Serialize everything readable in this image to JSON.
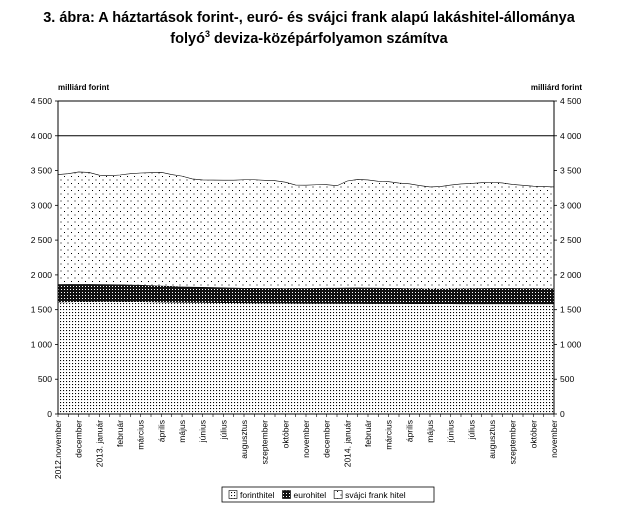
{
  "chart_data": {
    "type": "area",
    "stacked": true,
    "title_line1": "3. ábra: A háztartások forint-, euró- és svájci frank alapú lakáshitel-állománya",
    "title_line2_main": "folyó",
    "title_line2_sup": "3",
    "title_line2_rest": " deviza-középárfolyamon számítva",
    "ylabel_left": "milliárd forint",
    "ylabel_right": "milliárd forint",
    "ylim": [
      0,
      4500
    ],
    "yticks": [
      0,
      500,
      1000,
      1500,
      2000,
      2500,
      3000,
      3500,
      4000,
      4500
    ],
    "ytick_labels": [
      "0",
      "500",
      "1 000",
      "1 500",
      "2 000",
      "2 500",
      "3 000",
      "3 500",
      "4 000",
      "4 500"
    ],
    "grid_values": [
      4000,
      4500
    ],
    "categories": [
      "2012.november",
      "",
      "december",
      "",
      "2013. január",
      "",
      "február",
      "",
      "március",
      "",
      "április",
      "",
      "május",
      "",
      "június",
      "",
      "július",
      "",
      "augusztus",
      "",
      "szeptember",
      "",
      "október",
      "",
      "november",
      "",
      "december",
      "",
      "2014. január",
      "",
      "február",
      "",
      "március",
      "",
      "április",
      "",
      "május",
      "",
      "június",
      "",
      "július",
      "",
      "augusztus",
      "",
      "szeptember",
      "",
      "október",
      "",
      "november"
    ],
    "series": [
      {
        "name": "forinthitel",
        "pattern": "dots",
        "values": [
          1610,
          1612,
          1614,
          1615,
          1616,
          1616,
          1615,
          1615,
          1614,
          1612,
          1610,
          1608,
          1606,
          1604,
          1603,
          1602,
          1601,
          1600,
          1598,
          1597,
          1596,
          1595,
          1594,
          1593,
          1592,
          1592,
          1591,
          1590,
          1589,
          1589,
          1588,
          1588,
          1587,
          1587,
          1586,
          1586,
          1585,
          1585,
          1585,
          1584,
          1584,
          1584,
          1584,
          1584,
          1584,
          1584,
          1584,
          1584,
          1584
        ]
      },
      {
        "name": "eurohitel",
        "pattern": "dark",
        "values": [
          255,
          255,
          254,
          252,
          250,
          248,
          246,
          244,
          242,
          238,
          234,
          230,
          226,
          224,
          222,
          220,
          218,
          216,
          214,
          214,
          214,
          214,
          214,
          216,
          218,
          220,
          222,
          224,
          226,
          228,
          228,
          226,
          224,
          222,
          220,
          218,
          216,
          216,
          218,
          220,
          222,
          224,
          226,
          226,
          225,
          224,
          223,
          222,
          221
        ]
      },
      {
        "name": "svájci frank hitel",
        "pattern": "sparse",
        "values": [
          1578,
          1588,
          1612,
          1606,
          1568,
          1562,
          1575,
          1596,
          1609,
          1620,
          1630,
          1605,
          1588,
          1552,
          1540,
          1541,
          1542,
          1546,
          1556,
          1557,
          1550,
          1545,
          1525,
          1483,
          1480,
          1484,
          1484,
          1468,
          1535,
          1555,
          1549,
          1532,
          1529,
          1511,
          1504,
          1480,
          1464,
          1469,
          1488,
          1503,
          1509,
          1518,
          1522,
          1512,
          1491,
          1480,
          1468,
          1464,
          1460
        ]
      }
    ],
    "legend": [
      "forinthitel",
      "eurohitel",
      "svájci frank hitel"
    ],
    "legend_position": "bottom"
  }
}
